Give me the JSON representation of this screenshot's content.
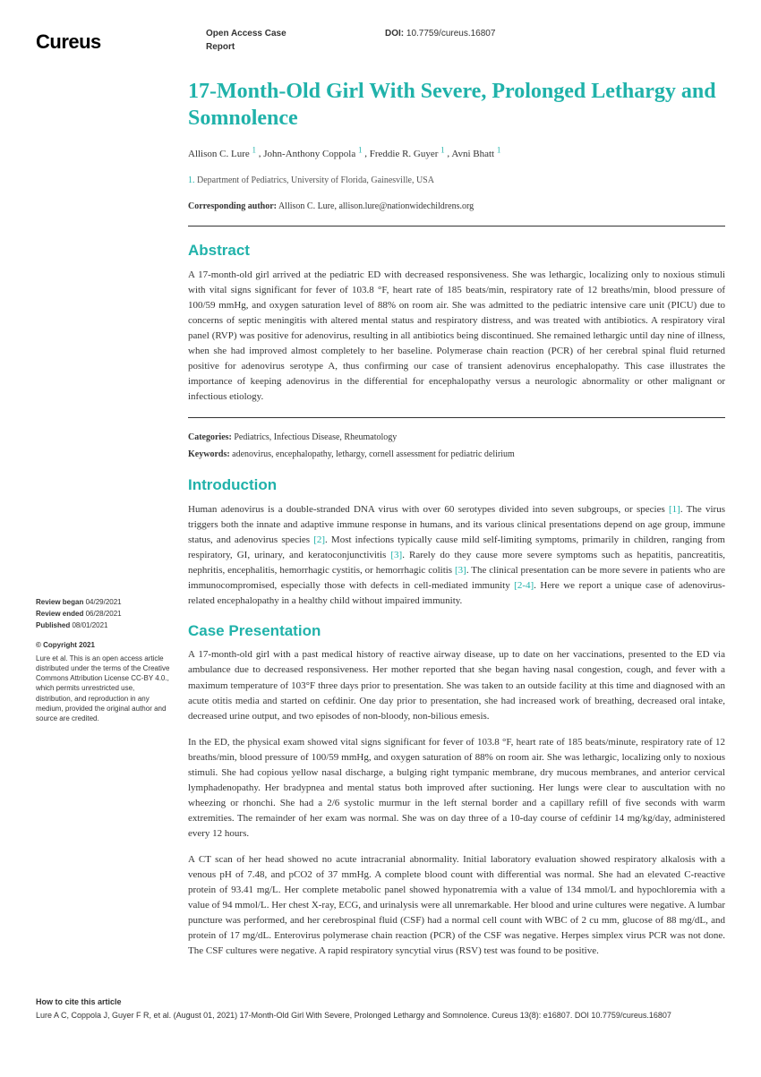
{
  "header": {
    "logo": "Cureus",
    "report_type": "Open Access Case Report",
    "doi_label": "DOI:",
    "doi": "10.7759/cureus.16807"
  },
  "article": {
    "title": "17-Month-Old Girl With Severe, Prolonged Lethargy and Somnolence",
    "authors": [
      {
        "name": "Allison C. Lure",
        "aff": "1"
      },
      {
        "name": "John-Anthony Coppola",
        "aff": "1"
      },
      {
        "name": "Freddie R. Guyer",
        "aff": "1"
      },
      {
        "name": "Avni Bhatt",
        "aff": "1"
      }
    ],
    "affiliation_num": "1.",
    "affiliation": "Department of Pediatrics, University of Florida, Gainesville, USA",
    "corresp_label": "Corresponding author:",
    "corresp": "Allison C. Lure, allison.lure@nationwidechildrens.org"
  },
  "abstract": {
    "heading": "Abstract",
    "text": "A 17-month-old girl arrived at the pediatric ED with decreased responsiveness. She was lethargic, localizing only to noxious stimuli with vital signs significant for fever of 103.8 °F, heart rate of 185 beats/min, respiratory rate of 12 breaths/min, blood pressure of 100/59 mmHg, and oxygen saturation level of 88% on room air. She was admitted to the pediatric intensive care unit (PICU) due to concerns of septic meningitis with altered mental status and respiratory distress, and was treated with antibiotics. A respiratory viral panel (RVP) was positive for adenovirus, resulting in all antibiotics being discontinued. She remained lethargic until day nine of illness, when she had improved almost completely to her baseline. Polymerase chain reaction (PCR) of her cerebral spinal fluid returned positive for adenovirus serotype A, thus confirming our case of transient adenovirus encephalopathy. This case illustrates the importance of keeping adenovirus in the differential for encephalopathy versus a neurologic abnormality or other malignant or infectious etiology."
  },
  "meta": {
    "categories_label": "Categories:",
    "categories": "Pediatrics, Infectious Disease, Rheumatology",
    "keywords_label": "Keywords:",
    "keywords": "adenovirus, encephalopathy, lethargy, cornell assessment for pediatric delirium"
  },
  "introduction": {
    "heading": "Introduction",
    "text_parts": [
      "Human adenovirus is a double-stranded DNA virus with over 60 serotypes divided into seven subgroups, or species ",
      "[1]",
      ". The virus triggers both the innate and adaptive immune response in humans, and its various clinical presentations depend on age group, immune status, and adenovirus species ",
      "[2]",
      ". Most infections typically cause mild self-limiting symptoms, primarily in children, ranging from respiratory, GI, urinary, and keratoconjunctivitis ",
      "[3]",
      ". Rarely do they cause more severe symptoms such as hepatitis, pancreatitis, nephritis, encephalitis, hemorrhagic cystitis, or hemorrhagic colitis ",
      "[3]",
      ". The clinical presentation can be more severe in patients who are immunocompromised, especially those with defects in cell-mediated immunity ",
      "[2-4]",
      ". Here we report a unique case of adenovirus-related encephalopathy in a healthy child without impaired immunity."
    ]
  },
  "case": {
    "heading": "Case Presentation",
    "p1": "A 17-month-old girl with a past medical history of reactive airway disease, up to date on her vaccinations, presented to the ED via ambulance due to decreased responsiveness. Her mother reported that she began having nasal congestion, cough, and fever with a maximum temperature of 103°F three days prior to presentation. She was taken to an outside facility at this time and diagnosed with an acute otitis media and started on cefdinir. One day prior to presentation, she had increased work of breathing, decreased oral intake, decreased urine output, and two episodes of non-bloody, non-bilious emesis.",
    "p2": "In the ED, the physical exam showed vital signs significant for fever of 103.8 °F, heart rate of 185 beats/minute, respiratory rate of 12 breaths/min, blood pressure of 100/59 mmHg, and oxygen saturation of 88% on room air. She was lethargic, localizing only to noxious stimuli. She had copious yellow nasal discharge, a bulging right tympanic membrane, dry mucous membranes, and anterior cervical lymphadenopathy. Her bradypnea and mental status both improved after suctioning. Her lungs were clear to auscultation with no wheezing or rhonchi. She had a 2/6 systolic murmur in the left sternal border and a capillary refill of five seconds with warm extremities. The remainder of her exam was normal. She was on day three of a 10-day course of cefdinir 14 mg/kg/day, administered every 12 hours.",
    "p3": "A CT scan of her head showed no acute intracranial abnormality. Initial laboratory evaluation showed respiratory alkalosis with a venous pH of 7.48, and pCO2 of 37 mmHg. A complete blood count with differential was normal. She had an elevated C-reactive protein of 93.41 mg/L. Her complete metabolic panel showed hyponatremia with a value of 134 mmol/L and hypochloremia with a value of 94 mmol/L. Her chest X-ray, ECG, and urinalysis were all unremarkable. Her blood and urine cultures were negative. A lumbar puncture was performed, and her cerebrospinal fluid (CSF) had a normal cell count with WBC of 2 cu mm, glucose of 88 mg/dL, and protein of 17 mg/dL. Enterovirus polymerase chain reaction (PCR) of the CSF was negative. Herpes simplex virus PCR was not done. The CSF cultures were negative. A rapid respiratory syncytial virus (RSV) test was found to be positive."
  },
  "sidebar": {
    "review_began_label": "Review began",
    "review_began": "04/29/2021",
    "review_ended_label": "Review ended",
    "review_ended": "06/28/2021",
    "published_label": "Published",
    "published": "08/01/2021",
    "copyright_title": "© Copyright 2021",
    "copyright_text": "Lure et al. This is an open access article distributed under the terms of the Creative Commons Attribution License CC-BY 4.0., which permits unrestricted use, distribution, and reproduction in any medium, provided the original author and source are credited."
  },
  "footer": {
    "how_label": "How to cite this article",
    "citation": "Lure A C, Coppola J, Guyer F R, et al. (August 01, 2021) 17-Month-Old Girl With Severe, Prolonged Lethargy and Somnolence. Cureus 13(8): e16807. DOI 10.7759/cureus.16807"
  }
}
